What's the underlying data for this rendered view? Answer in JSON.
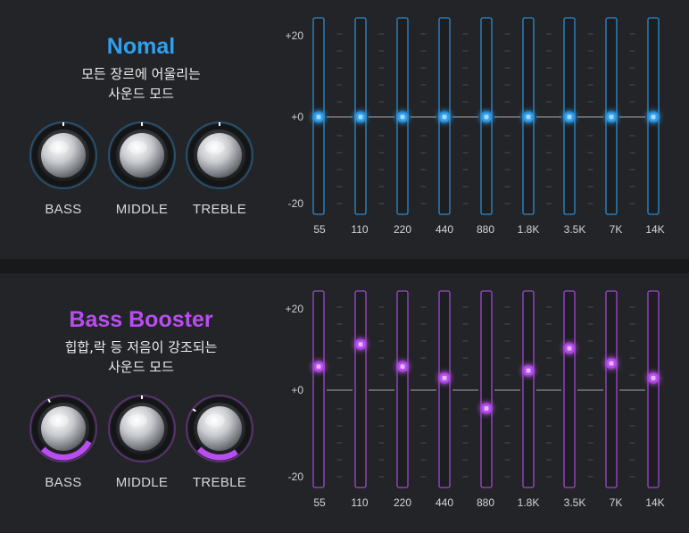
{
  "modes": [
    {
      "title": "Nomal",
      "description_line1": "모든 장르에 어울리는",
      "description_line2": "사운드 모드",
      "accent": "#2ea0ef",
      "knobs": [
        {
          "label": "BASS",
          "level": 0
        },
        {
          "label": "MIDDLE",
          "level": 0
        },
        {
          "label": "TREBLE",
          "level": 0
        }
      ],
      "eq": {
        "db_labels": [
          "+20",
          "+0",
          "-20"
        ],
        "bands": [
          {
            "freq": "55",
            "gain_db": 0
          },
          {
            "freq": "110",
            "gain_db": 0
          },
          {
            "freq": "220",
            "gain_db": 0
          },
          {
            "freq": "440",
            "gain_db": 0
          },
          {
            "freq": "880",
            "gain_db": 0
          },
          {
            "freq": "1.8K",
            "gain_db": 0
          },
          {
            "freq": "3.5K",
            "gain_db": 0
          },
          {
            "freq": "7K",
            "gain_db": 0
          },
          {
            "freq": "14K",
            "gain_db": 0
          }
        ]
      }
    },
    {
      "title": "Bass Booster",
      "description_line1": "힙합,락 등 저음이 강조되는",
      "description_line2": "사운드 모드",
      "accent": "#b84df0",
      "knobs": [
        {
          "label": "BASS",
          "level": 0.4
        },
        {
          "label": "MIDDLE",
          "level": 0
        },
        {
          "label": "TREBLE",
          "level": 0.3
        }
      ],
      "eq": {
        "db_labels": [
          "+20",
          "+0",
          "-20"
        ],
        "bands": [
          {
            "freq": "55",
            "gain_db": 5.8
          },
          {
            "freq": "110",
            "gain_db": 11.3
          },
          {
            "freq": "220",
            "gain_db": 5.8
          },
          {
            "freq": "440",
            "gain_db": 3.0
          },
          {
            "freq": "880",
            "gain_db": -4.5
          },
          {
            "freq": "1.8K",
            "gain_db": 4.8
          },
          {
            "freq": "3.5K",
            "gain_db": 10.3
          },
          {
            "freq": "7K",
            "gain_db": 6.6
          },
          {
            "freq": "14K",
            "gain_db": 3.0
          }
        ]
      }
    }
  ]
}
